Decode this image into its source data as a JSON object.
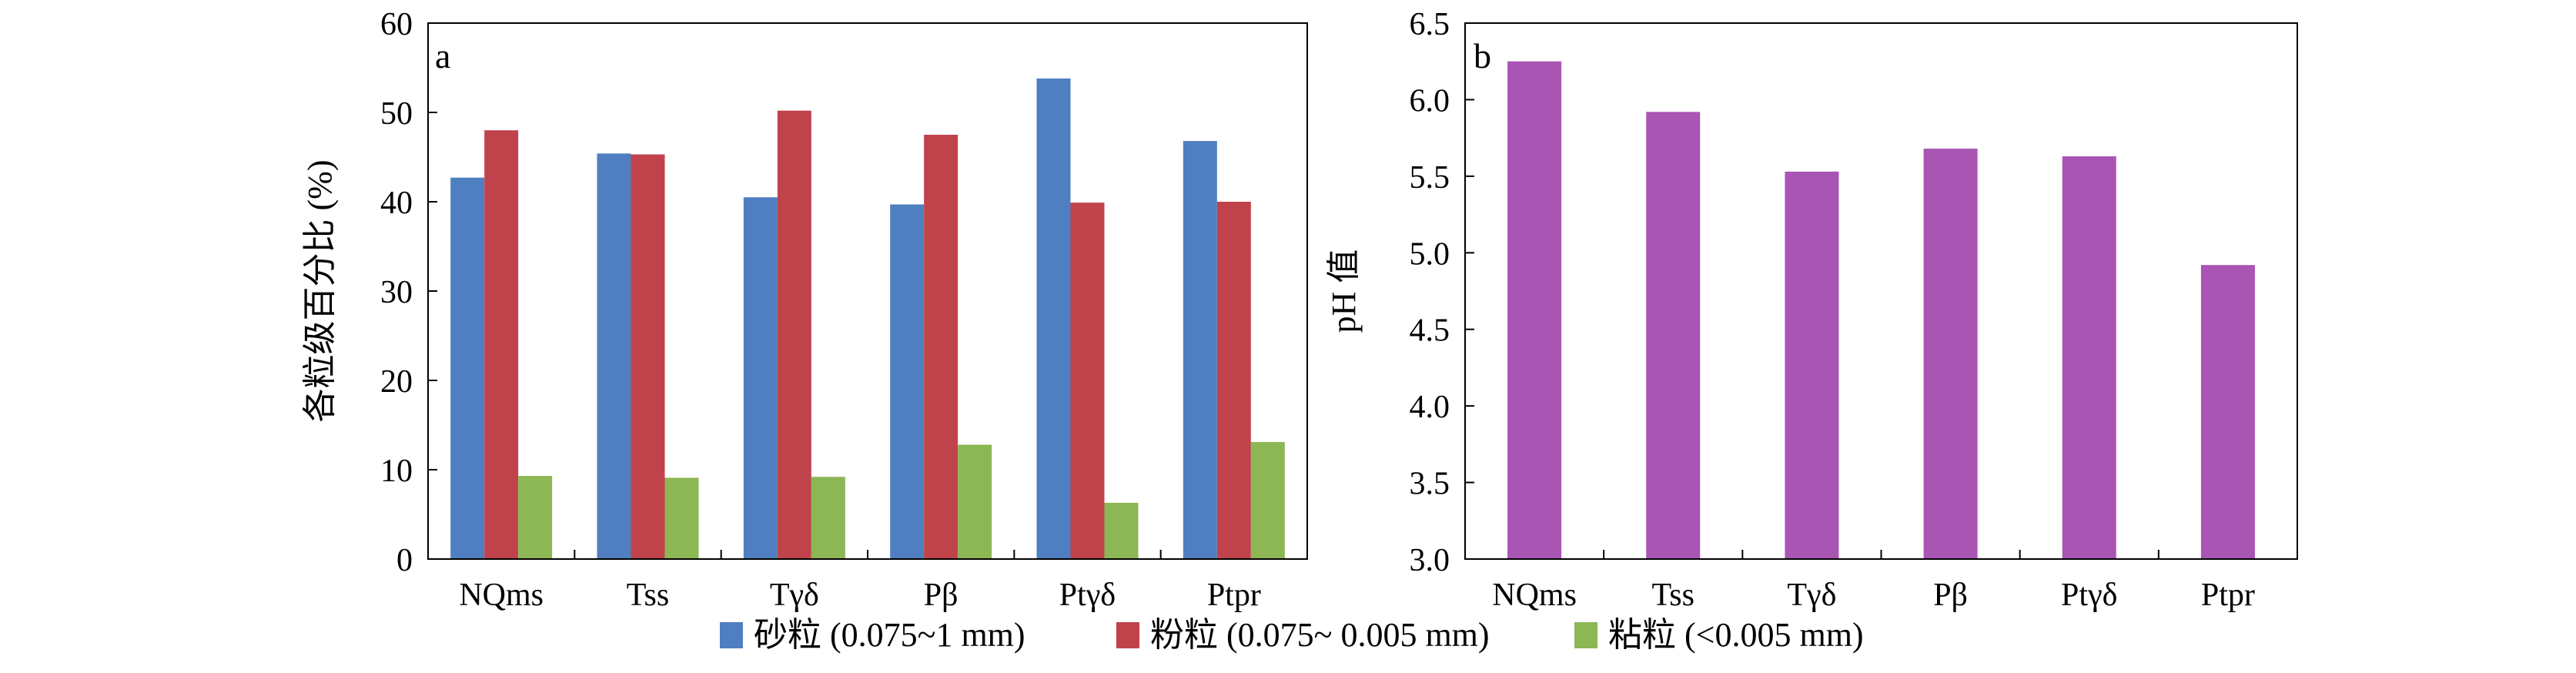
{
  "chart_data": [
    {
      "type": "bar",
      "panel_label": "a",
      "ylabel": "各粒级百分比 (%)",
      "ylim": [
        0,
        60
      ],
      "yticks": [
        0,
        10,
        20,
        30,
        40,
        50,
        60
      ],
      "categories": [
        "NQms",
        "Tss",
        "Tγδ",
        "Pβ",
        "Ptγδ",
        "Ptpr"
      ],
      "series": [
        {
          "name": "砂粒 (0.075~1 mm)",
          "color": "#4F7FC0",
          "values": [
            42.7,
            45.4,
            40.5,
            39.7,
            53.8,
            46.8
          ]
        },
        {
          "name": "粉粒 (0.075~ 0.005 mm)",
          "color": "#C0434C",
          "values": [
            48.0,
            45.3,
            50.2,
            47.5,
            39.9,
            40.0
          ]
        },
        {
          "name": "粘粒 (<0.005 mm)",
          "color": "#8DB654",
          "values": [
            9.3,
            9.1,
            9.2,
            12.8,
            6.3,
            13.1
          ]
        }
      ]
    },
    {
      "type": "bar",
      "panel_label": "b",
      "ylabel": "pH 值",
      "ylim": [
        3.0,
        6.5
      ],
      "yticks": [
        "3.0",
        "3.5",
        "4.0",
        "4.5",
        "5.0",
        "5.5",
        "6.0",
        "6.5"
      ],
      "categories": [
        "NQms",
        "Tss",
        "Tγδ",
        "Pβ",
        "Ptγδ",
        "Ptpr"
      ],
      "series": [
        {
          "color": "#A855B4",
          "values": [
            6.25,
            5.92,
            5.53,
            5.68,
            5.63,
            4.92
          ]
        }
      ]
    }
  ]
}
